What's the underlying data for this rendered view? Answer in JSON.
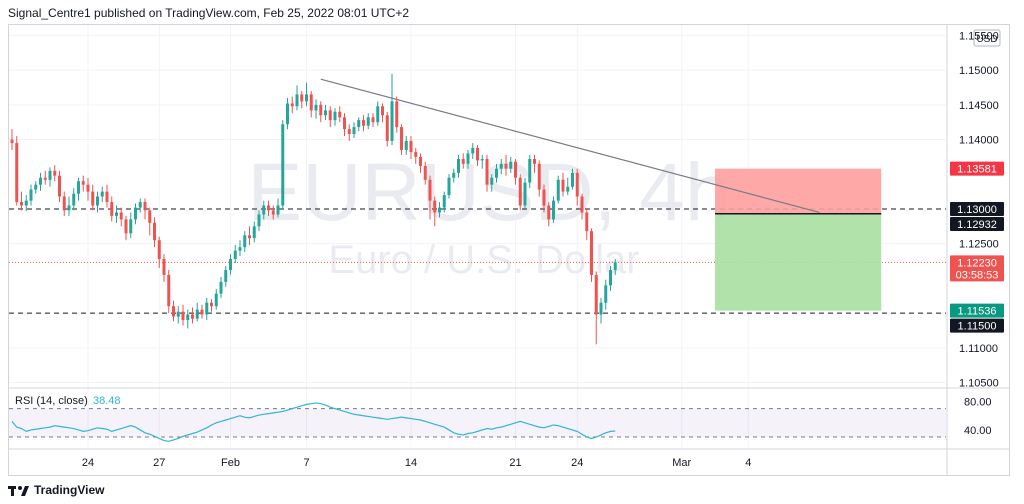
{
  "header": {
    "publisher_line": "Signal_Centre1 published on TradingView.com, Feb 25, 2022 08:01 UTC+2"
  },
  "watermark": {
    "symbol": "EURUSD, 4h",
    "description": "Euro / U.S. Dollar"
  },
  "price_axis": {
    "currency": "USD"
  },
  "rsi_pane": {
    "label": "RSI (14, close)",
    "value": "38.48"
  },
  "footer": {
    "brand": "TradingView"
  },
  "colors": {
    "up": "#26a69a",
    "down": "#ef5350",
    "rsi": "#2fb5d6",
    "stop": "#ff9e9e",
    "target": "#a8dfa1",
    "trendline": "#787b86"
  },
  "chart_data": {
    "type": "candlestick",
    "symbol": "EURUSD",
    "timeframe": "4h",
    "ylim": [
      1.1045,
      1.1565
    ],
    "y_ticks": [
      1.105,
      1.11,
      1.125,
      1.14,
      1.145,
      1.15,
      1.155
    ],
    "y_tick_labels": [
      "1.10500",
      "1.11000",
      "1.12500",
      "1.14000",
      "1.14500",
      "1.15000",
      "1.15500"
    ],
    "x_tick_labels": [
      "24",
      "27",
      "Feb",
      "7",
      "14",
      "21",
      "24",
      "Mar",
      "4"
    ],
    "x_tick_index": [
      16,
      31,
      46,
      62,
      84,
      106,
      119,
      141,
      155
    ],
    "candles": [
      [
        1.14,
        1.1395,
        1.1415,
        1.1385
      ],
      [
        1.1395,
        1.131,
        1.1405,
        1.1305
      ],
      [
        1.131,
        1.1305,
        1.1325,
        1.1298
      ],
      [
        1.1305,
        1.1312,
        1.132,
        1.1297
      ],
      [
        1.1312,
        1.1328,
        1.1335,
        1.1305
      ],
      [
        1.1328,
        1.1335,
        1.134,
        1.1322
      ],
      [
        1.1335,
        1.1345,
        1.1352,
        1.1326
      ],
      [
        1.1345,
        1.1342,
        1.1355,
        1.1335
      ],
      [
        1.1342,
        1.1355,
        1.136,
        1.1332
      ],
      [
        1.1355,
        1.1348,
        1.1363,
        1.134
      ],
      [
        1.1348,
        1.1318,
        1.1355,
        1.131
      ],
      [
        1.1318,
        1.1298,
        1.1325,
        1.129
      ],
      [
        1.1298,
        1.1305,
        1.1318,
        1.129
      ],
      [
        1.1305,
        1.1322,
        1.133,
        1.1298
      ],
      [
        1.1322,
        1.134,
        1.1345,
        1.1312
      ],
      [
        1.134,
        1.1335,
        1.1348,
        1.1325
      ],
      [
        1.1335,
        1.1325,
        1.1345,
        1.1312
      ],
      [
        1.1325,
        1.1305,
        1.1335,
        1.1298
      ],
      [
        1.1305,
        1.1318,
        1.1325,
        1.1295
      ],
      [
        1.1318,
        1.1325,
        1.1332,
        1.131
      ],
      [
        1.1325,
        1.131,
        1.1335,
        1.1302
      ],
      [
        1.131,
        1.129,
        1.1318,
        1.1282
      ],
      [
        1.129,
        1.1295,
        1.1305,
        1.128
      ],
      [
        1.1295,
        1.1285,
        1.1302,
        1.1275
      ],
      [
        1.1285,
        1.1265,
        1.129,
        1.1255
      ],
      [
        1.1265,
        1.1285,
        1.1295,
        1.1258
      ],
      [
        1.1285,
        1.1302,
        1.1308,
        1.1278
      ],
      [
        1.1302,
        1.131,
        1.1315,
        1.1295
      ],
      [
        1.131,
        1.1298,
        1.1315,
        1.1285
      ],
      [
        1.1298,
        1.128,
        1.1302,
        1.1262
      ],
      [
        1.128,
        1.1255,
        1.1288,
        1.1245
      ],
      [
        1.1255,
        1.1228,
        1.126,
        1.1215
      ],
      [
        1.1228,
        1.1205,
        1.1235,
        1.1195
      ],
      [
        1.1205,
        1.116,
        1.1212,
        1.115
      ],
      [
        1.116,
        1.1145,
        1.1168,
        1.1138
      ],
      [
        1.1145,
        1.1152,
        1.116,
        1.1135
      ],
      [
        1.1152,
        1.114,
        1.1162,
        1.1132
      ],
      [
        1.114,
        1.1148,
        1.1155,
        1.1128
      ],
      [
        1.1148,
        1.1142,
        1.1158,
        1.1135
      ],
      [
        1.1142,
        1.1155,
        1.1165,
        1.1138
      ],
      [
        1.1155,
        1.1148,
        1.1162,
        1.1142
      ],
      [
        1.1148,
        1.1165,
        1.1172,
        1.114
      ],
      [
        1.1165,
        1.116,
        1.117,
        1.1152
      ],
      [
        1.116,
        1.1178,
        1.1185,
        1.1155
      ],
      [
        1.1178,
        1.1195,
        1.1202,
        1.1172
      ],
      [
        1.1195,
        1.1212,
        1.1218,
        1.1188
      ],
      [
        1.1212,
        1.1228,
        1.1235,
        1.1205
      ],
      [
        1.1228,
        1.124,
        1.1248,
        1.1222
      ],
      [
        1.124,
        1.1245,
        1.1255,
        1.1232
      ],
      [
        1.1245,
        1.1262,
        1.1268,
        1.1238
      ],
      [
        1.1262,
        1.1258,
        1.1275,
        1.1248
      ],
      [
        1.1258,
        1.1275,
        1.1282,
        1.1252
      ],
      [
        1.1275,
        1.1292,
        1.1298,
        1.1268
      ],
      [
        1.1292,
        1.1305,
        1.1312,
        1.1285
      ],
      [
        1.1305,
        1.1298,
        1.1312,
        1.129
      ],
      [
        1.1298,
        1.1292,
        1.1305,
        1.1285
      ],
      [
        1.1292,
        1.1305,
        1.1315,
        1.1288
      ],
      [
        1.1305,
        1.1422,
        1.1428,
        1.13
      ],
      [
        1.1422,
        1.1452,
        1.146,
        1.1415
      ],
      [
        1.1452,
        1.1448,
        1.1462,
        1.1438
      ],
      [
        1.1448,
        1.1465,
        1.1478,
        1.1442
      ],
      [
        1.1465,
        1.1455,
        1.147,
        1.1445
      ],
      [
        1.1455,
        1.1465,
        1.1482,
        1.1448
      ],
      [
        1.1465,
        1.1442,
        1.147,
        1.1432
      ],
      [
        1.1442,
        1.145,
        1.1458,
        1.143
      ],
      [
        1.145,
        1.1435,
        1.1455,
        1.1425
      ],
      [
        1.1435,
        1.1442,
        1.145,
        1.1428
      ],
      [
        1.1442,
        1.1428,
        1.1448,
        1.1418
      ],
      [
        1.1428,
        1.144,
        1.1445,
        1.142
      ],
      [
        1.144,
        1.1432,
        1.1448,
        1.1425
      ],
      [
        1.1432,
        1.1415,
        1.1438,
        1.1405
      ],
      [
        1.1415,
        1.1408,
        1.1422,
        1.1398
      ],
      [
        1.1408,
        1.1418,
        1.1425,
        1.1402
      ],
      [
        1.1418,
        1.1428,
        1.1432,
        1.1412
      ],
      [
        1.1428,
        1.142,
        1.1435,
        1.1412
      ],
      [
        1.142,
        1.1432,
        1.1438,
        1.1415
      ],
      [
        1.1432,
        1.1425,
        1.1438,
        1.1418
      ],
      [
        1.1425,
        1.1448,
        1.1455,
        1.142
      ],
      [
        1.1448,
        1.1435,
        1.1452,
        1.1425
      ],
      [
        1.1435,
        1.1398,
        1.144,
        1.139
      ],
      [
        1.1398,
        1.1455,
        1.1495,
        1.1392
      ],
      [
        1.1455,
        1.1418,
        1.1462,
        1.141
      ],
      [
        1.1418,
        1.1385,
        1.1422,
        1.1378
      ],
      [
        1.1385,
        1.1398,
        1.1405,
        1.1378
      ],
      [
        1.1398,
        1.1382,
        1.1405,
        1.1372
      ],
      [
        1.1382,
        1.1375,
        1.1388,
        1.1365
      ],
      [
        1.1375,
        1.1362,
        1.138,
        1.1352
      ],
      [
        1.1362,
        1.1342,
        1.1368,
        1.1335
      ],
      [
        1.1342,
        1.1312,
        1.1348,
        1.1285
      ],
      [
        1.1312,
        1.1295,
        1.1318,
        1.1275
      ],
      [
        1.1295,
        1.1302,
        1.131,
        1.1288
      ],
      [
        1.1302,
        1.132,
        1.1325,
        1.1295
      ],
      [
        1.132,
        1.1345,
        1.135,
        1.1315
      ],
      [
        1.1345,
        1.1352,
        1.1358,
        1.1338
      ],
      [
        1.1352,
        1.1372,
        1.1378,
        1.1345
      ],
      [
        1.1372,
        1.1365,
        1.138,
        1.1358
      ],
      [
        1.1365,
        1.138,
        1.1385,
        1.1358
      ],
      [
        1.138,
        1.1388,
        1.1395,
        1.1372
      ],
      [
        1.1388,
        1.137,
        1.1392,
        1.1362
      ],
      [
        1.137,
        1.1372,
        1.1378,
        1.1358
      ],
      [
        1.1372,
        1.1335,
        1.1378,
        1.1325
      ],
      [
        1.1335,
        1.1345,
        1.135,
        1.1325
      ],
      [
        1.1345,
        1.1358,
        1.1365,
        1.1338
      ],
      [
        1.1358,
        1.1365,
        1.1372,
        1.135
      ],
      [
        1.1365,
        1.1358,
        1.1378,
        1.1348
      ],
      [
        1.1358,
        1.1368,
        1.1375,
        1.1352
      ],
      [
        1.1368,
        1.1345,
        1.1372,
        1.1335
      ],
      [
        1.1345,
        1.1305,
        1.135,
        1.1298
      ],
      [
        1.1305,
        1.1338,
        1.1345,
        1.13
      ],
      [
        1.1338,
        1.1372,
        1.1378,
        1.133
      ],
      [
        1.1372,
        1.1365,
        1.1378,
        1.1352
      ],
      [
        1.1365,
        1.1328,
        1.137,
        1.1318
      ],
      [
        1.1328,
        1.1305,
        1.1335,
        1.1295
      ],
      [
        1.1305,
        1.1285,
        1.131,
        1.1275
      ],
      [
        1.1285,
        1.1312,
        1.1318,
        1.128
      ],
      [
        1.1312,
        1.1342,
        1.1348,
        1.1308
      ],
      [
        1.1342,
        1.1325,
        1.1352,
        1.1318
      ],
      [
        1.1325,
        1.1332,
        1.1345,
        1.132
      ],
      [
        1.1332,
        1.1352,
        1.1358,
        1.1328
      ],
      [
        1.1352,
        1.1318,
        1.1358,
        1.1305
      ],
      [
        1.1318,
        1.1295,
        1.1322,
        1.1285
      ],
      [
        1.1295,
        1.1268,
        1.13,
        1.1255
      ],
      [
        1.1268,
        1.1205,
        1.1272,
        1.1195
      ],
      [
        1.1205,
        1.1148,
        1.121,
        1.1105
      ],
      [
        1.1148,
        1.1165,
        1.1172,
        1.1135
      ],
      [
        1.1165,
        1.119,
        1.1198,
        1.1155
      ],
      [
        1.119,
        1.1212,
        1.1218,
        1.1182
      ],
      [
        1.1212,
        1.1223,
        1.1228,
        1.1205
      ]
    ],
    "horizontal_levels": [
      1.13,
      1.115
    ],
    "trendline": [
      [
        65,
        1.1487
      ],
      [
        170,
        1.1295
      ]
    ],
    "position": {
      "entry": 1.12932,
      "stop": 1.13581,
      "target": 1.11536,
      "start_index": 148,
      "end_index": 183
    },
    "price_labels": [
      {
        "text": "1.13581",
        "value": 1.13581,
        "style": "stop"
      },
      {
        "text": "1.13000",
        "value": 1.13,
        "style": "line"
      },
      {
        "text": "1.12932",
        "value": 1.12932,
        "style": "entry"
      },
      {
        "text": "1.12230",
        "value": 1.1223,
        "style": "last",
        "countdown": "03:58:53"
      },
      {
        "text": "1.11536",
        "value": 1.11536,
        "style": "target"
      },
      {
        "text": "1.11500",
        "value": 1.115,
        "style": "line"
      }
    ],
    "rsi": {
      "ylim": [
        16,
        92
      ],
      "ticks": [
        80,
        40
      ],
      "tick_labels": [
        "80.00",
        "40.00"
      ],
      "band": [
        70,
        30
      ],
      "values": [
        52,
        44,
        42,
        38,
        40,
        41,
        42,
        43,
        44,
        46,
        45,
        44,
        43,
        42,
        40,
        38,
        39,
        41,
        43,
        42,
        41,
        38,
        40,
        42,
        44,
        46,
        44,
        40,
        36,
        34,
        31,
        28,
        25,
        24,
        26,
        28,
        31,
        33,
        35,
        37,
        40,
        43,
        47,
        50,
        52,
        54,
        56,
        58,
        60,
        58,
        57,
        59,
        61,
        62,
        63,
        64,
        65,
        66,
        68,
        70,
        72,
        74,
        76,
        77,
        78,
        77,
        75,
        72,
        70,
        68,
        66,
        64,
        62,
        61,
        60,
        59,
        58,
        57,
        56,
        55,
        56,
        57,
        58,
        57,
        56,
        55,
        54,
        52,
        50,
        48,
        46,
        44,
        40,
        36,
        34,
        33,
        35,
        36,
        38,
        40,
        42,
        41,
        43,
        44,
        46,
        48,
        50,
        52,
        50,
        48,
        46,
        44,
        43,
        45,
        47,
        46,
        44,
        42,
        40,
        38,
        34,
        30,
        28,
        30,
        33,
        36,
        38,
        38.48
      ]
    }
  }
}
